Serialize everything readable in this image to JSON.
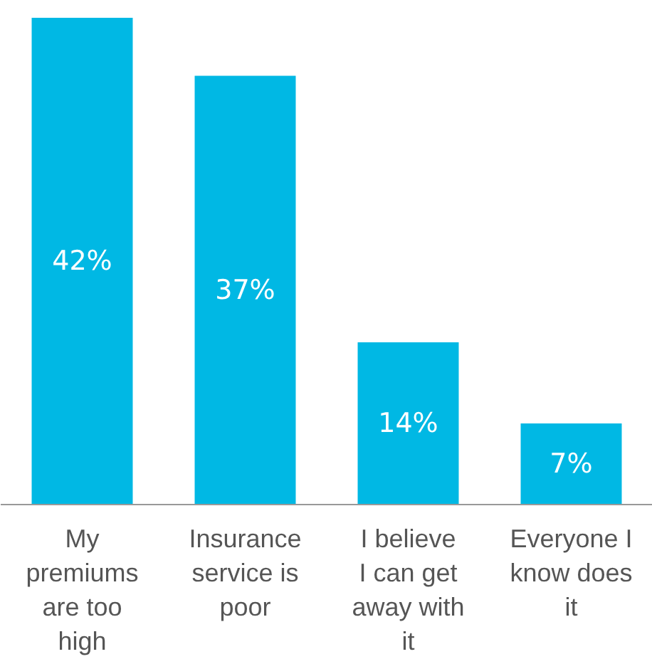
{
  "chart_data": {
    "type": "bar",
    "categories": [
      "My premiums are too high",
      "Insurance service is poor",
      "I believe I can get away with it",
      "Everyone I know does it"
    ],
    "values": [
      42,
      37,
      14,
      7
    ],
    "value_labels": [
      "42%",
      "37%",
      "14%",
      "7%"
    ],
    "color": "#00b8e4"
  }
}
